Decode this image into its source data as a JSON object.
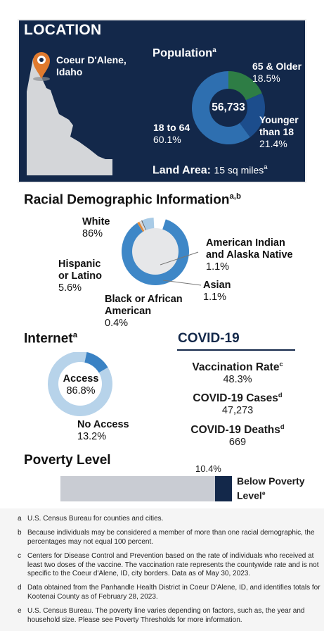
{
  "location": {
    "title": "LOCATION",
    "city_line1": "Coeur D'Alene,",
    "city_line2": "Idaho",
    "population_label": "Population",
    "population_sup": "a",
    "population_total": "56,733",
    "land_area_label": "Land Area:",
    "land_area_value": "15 sq miles",
    "land_area_sup": "a"
  },
  "population_segments": [
    {
      "label1": "65 & Older",
      "label2": "",
      "value": "18.5%",
      "fraction": 0.185,
      "color": "#2e7d45"
    },
    {
      "label1": "Younger",
      "label2": "than 18",
      "value": "21.4%",
      "fraction": 0.214,
      "color": "#1c4d8c"
    },
    {
      "label1": "18 to 64",
      "label2": "",
      "value": "60.1%",
      "fraction": 0.601,
      "color": "#2e6fb0"
    }
  ],
  "racial": {
    "title": "Racial Demographic Information",
    "sup": "a,b",
    "segments": [
      {
        "label1": "White",
        "label2": "",
        "value": "86%",
        "fraction": 0.86,
        "color": "#3e87c7"
      },
      {
        "label1": "Hispanic",
        "label2": "or Latino",
        "value": "5.6%",
        "fraction": 0.056,
        "color": "#a9cbe6"
      },
      {
        "label1": "Black or African",
        "label2": "American",
        "value": "0.4%",
        "fraction": 0.004,
        "color": "#555555"
      },
      {
        "label1": "Asian",
        "label2": "",
        "value": "1.1%",
        "fraction": 0.011,
        "color": "#d8d8d8"
      },
      {
        "label1": "American Indian",
        "label2": "and Alaska Native",
        "value": "1.1%",
        "fraction": 0.011,
        "color": "#e0893a"
      }
    ]
  },
  "internet": {
    "title": "Internet",
    "sup": "a",
    "access_label": "Access",
    "access_value": "86.8%",
    "access_fraction": 0.868,
    "no_access_label": "No Access",
    "no_access_value": "13.2%",
    "no_access_fraction": 0.132,
    "access_color": "#b7d3ea",
    "no_access_color": "#3a82c4"
  },
  "covid": {
    "title": "COVID-19",
    "items": [
      {
        "label": "Vaccination Rate",
        "sup": "c",
        "value": "48.3%"
      },
      {
        "label": "COVID-19 Cases",
        "sup": "d",
        "value": "47,273"
      },
      {
        "label": "COVID-19 Deaths",
        "sup": "d",
        "value": "669"
      }
    ]
  },
  "poverty": {
    "title": "Poverty Level",
    "value": "10.4%",
    "fraction": 0.104,
    "label1": "Below Poverty",
    "label2": "Level",
    "sup": "e",
    "fill_color": "#13284a",
    "track_color": "#c9ccd3"
  },
  "footnotes": [
    {
      "key": "a",
      "text": "U.S. Census Bureau for counties and cities."
    },
    {
      "key": "b",
      "text": "Because individuals may be considered a member of more than one racial demographic, the percentages may not equal 100 percent."
    },
    {
      "key": "c",
      "text": "Centers for Disease Control and Prevention based on the rate of individuals who received at least two doses of the vaccine. The vaccination rate represents the countywide rate and is not specific to the Coeur d'Alene, ID, city borders. Data as of May 30, 2023."
    },
    {
      "key": "d",
      "text": "Data obtained from the Panhandle Health District in Coeur D'Alene, ID, and identifies totals for Kootenai County as of February 28, 2023."
    },
    {
      "key": "e",
      "text": "U.S. Census Bureau. The poverty line varies depending on factors, such as, the year and household size. Please see Poverty Thresholds for more information."
    }
  ],
  "chart_data": [
    {
      "type": "pie",
      "title": "Population",
      "categories": [
        "65 & Older",
        "Younger than 18",
        "18 to 64"
      ],
      "values": [
        18.5,
        21.4,
        60.1
      ],
      "center_label": "56,733"
    },
    {
      "type": "pie",
      "title": "Racial Demographic Information",
      "categories": [
        "White",
        "Hispanic or Latino",
        "Black or African American",
        "Asian",
        "American Indian and Alaska Native"
      ],
      "values": [
        86,
        5.6,
        0.4,
        1.1,
        1.1
      ]
    },
    {
      "type": "pie",
      "title": "Internet",
      "categories": [
        "Access",
        "No Access"
      ],
      "values": [
        86.8,
        13.2
      ]
    },
    {
      "type": "bar",
      "title": "Poverty Level",
      "categories": [
        "Below Poverty Level"
      ],
      "values": [
        10.4
      ],
      "ylim": [
        0,
        100
      ]
    }
  ]
}
